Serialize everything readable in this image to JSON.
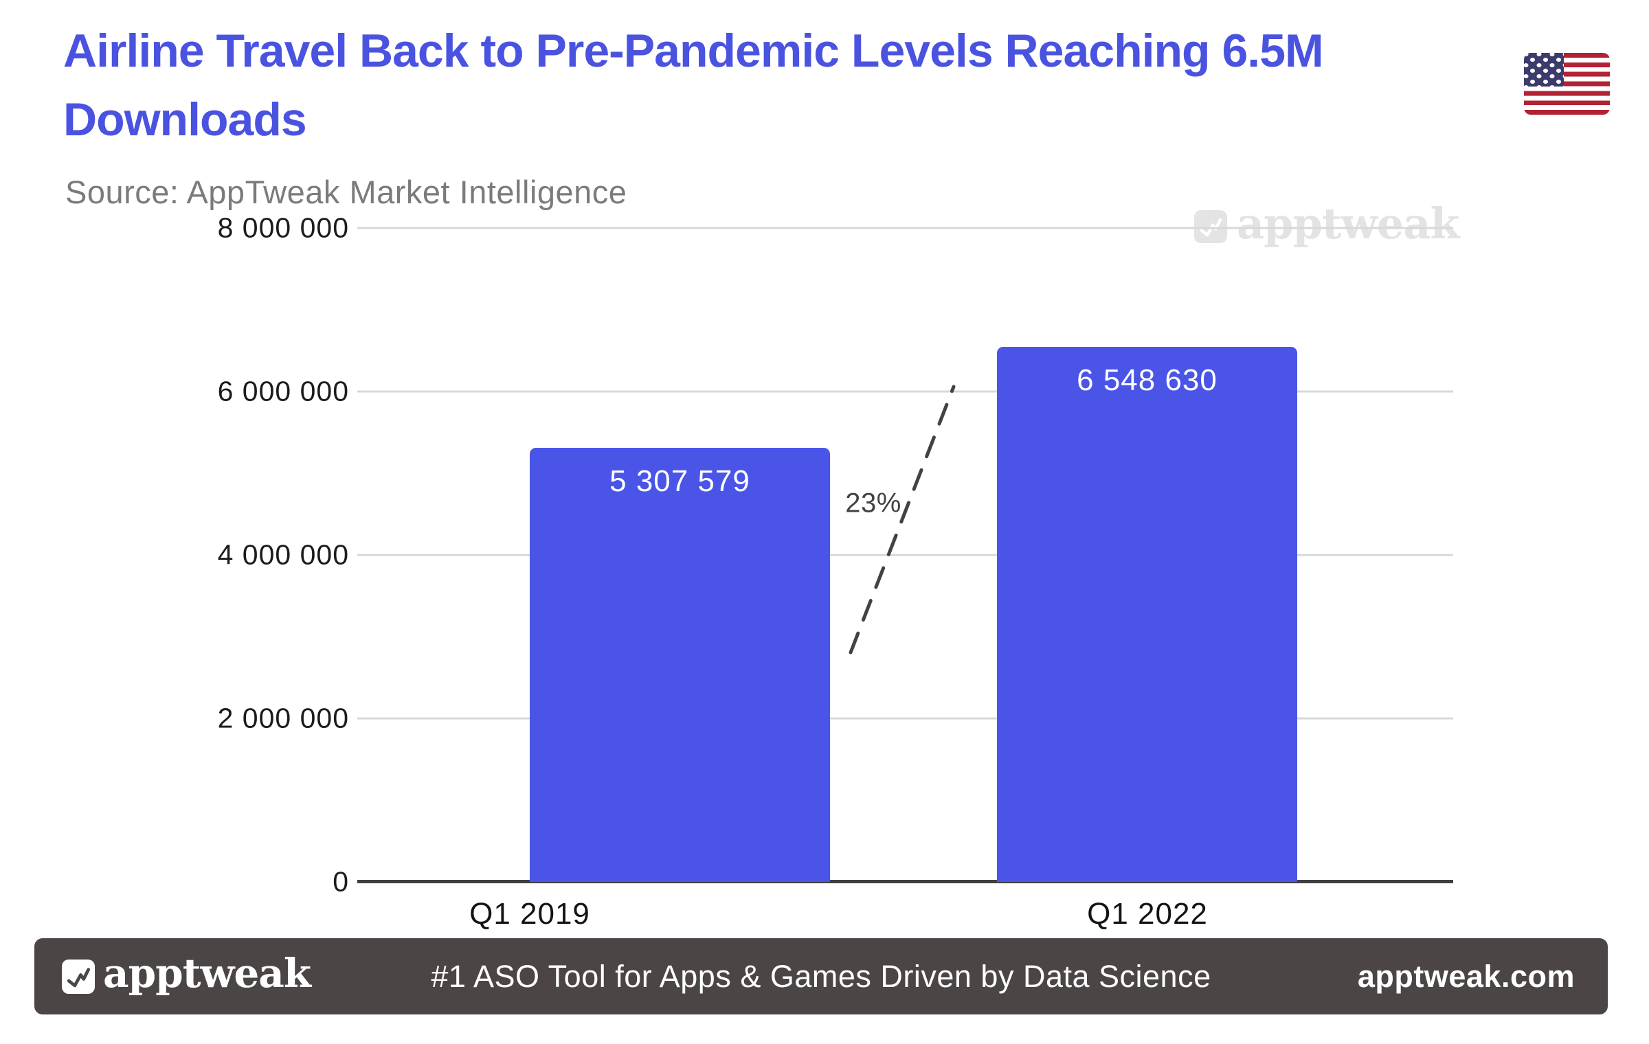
{
  "header": {
    "title_line1": "Airline Travel Back to Pre-Pandemic Levels Reaching 6.5M",
    "title_line2": "Downloads",
    "source": "Source: AppTweak Market Intelligence"
  },
  "watermark": {
    "brand": "apptweak"
  },
  "chart_data": {
    "type": "bar",
    "title": "Airline Travel Back to Pre-Pandemic Levels Reaching 6.5M Downloads",
    "source": "AppTweak Market Intelligence",
    "categories": [
      "Q1 2019",
      "Q1 2022"
    ],
    "values": [
      5307579,
      6548630
    ],
    "bar_labels": [
      "5 307 579",
      "6 548 630"
    ],
    "growth_annotation": "23%",
    "ylim": [
      0,
      8000000
    ],
    "yticks": [
      {
        "value": 8000000,
        "label": "8 000 000"
      },
      {
        "value": 6000000,
        "label": "6 000 000"
      },
      {
        "value": 4000000,
        "label": "4 000 000"
      },
      {
        "value": 2000000,
        "label": "2 000 000"
      },
      {
        "value": 0,
        "label": "0"
      }
    ],
    "grid": true,
    "legend": false,
    "bar_color": "#4A55E8"
  },
  "footer": {
    "brand": "apptweak",
    "tagline": "#1 ASO Tool for Apps & Games Driven by Data Science",
    "url": "apptweak.com"
  },
  "colors": {
    "accent_title": "#4A53E0",
    "bar": "#4A55E8",
    "grid": "#D8D8D8",
    "axis": "#3F3F3F",
    "source_gray": "#7B7B7B",
    "annotation_gray": "#424242",
    "footer_bg": "#4B4645",
    "watermark_gray": "#E3E3E3",
    "flag_red": "#B22234",
    "flag_blue": "#3C3B6E"
  }
}
